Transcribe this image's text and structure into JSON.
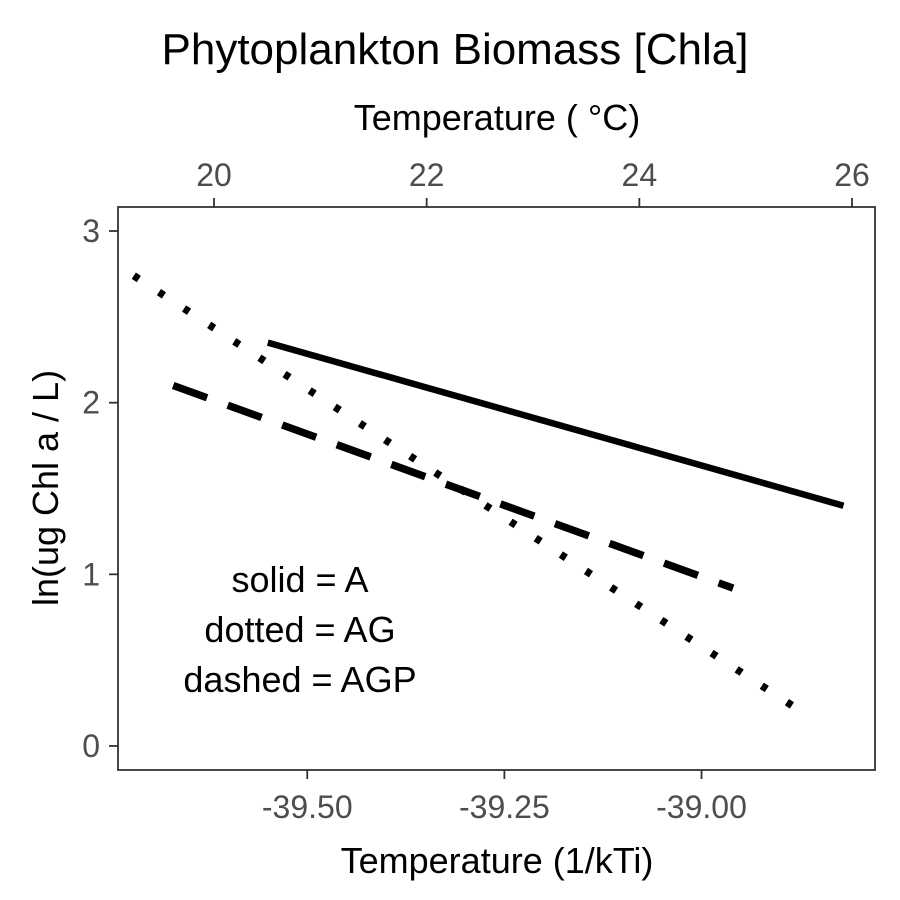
{
  "chart_data": {
    "type": "line",
    "title": "Phytoplankton Biomass [Chla]",
    "xlabel": "Temperature (1/kTi)",
    "x2label": "Temperature ( °C)",
    "ylabel": "ln(ug Chl a / L)",
    "xlim": [
      -39.74,
      -38.78
    ],
    "ylim": [
      -0.14,
      3.14
    ],
    "x_ticks": [
      -39.5,
      -39.25,
      -39.0
    ],
    "x_tick_labels": [
      "-39.50",
      "-39.25",
      "-39.00"
    ],
    "x2_ticks": [
      20,
      22,
      24,
      26
    ],
    "x2_tick_labels": [
      "20",
      "22",
      "24",
      "26"
    ],
    "y_ticks": [
      0,
      1,
      2,
      3
    ],
    "y_tick_labels": [
      "0",
      "1",
      "2",
      "3"
    ],
    "grid": false,
    "annotations": [
      "solid = A",
      "dotted = AG",
      "dashed = AGP"
    ],
    "series": [
      {
        "line_style": "solid",
        "x": [
          -39.55,
          -38.82
        ],
        "y": [
          2.35,
          1.4
        ]
      },
      {
        "line_style": "dotted",
        "x": [
          -39.72,
          -38.86
        ],
        "y": [
          2.74,
          0.16
        ]
      },
      {
        "line_style": "dashed",
        "x": [
          -39.67,
          -38.96
        ],
        "y": [
          2.1,
          0.92
        ]
      }
    ]
  }
}
